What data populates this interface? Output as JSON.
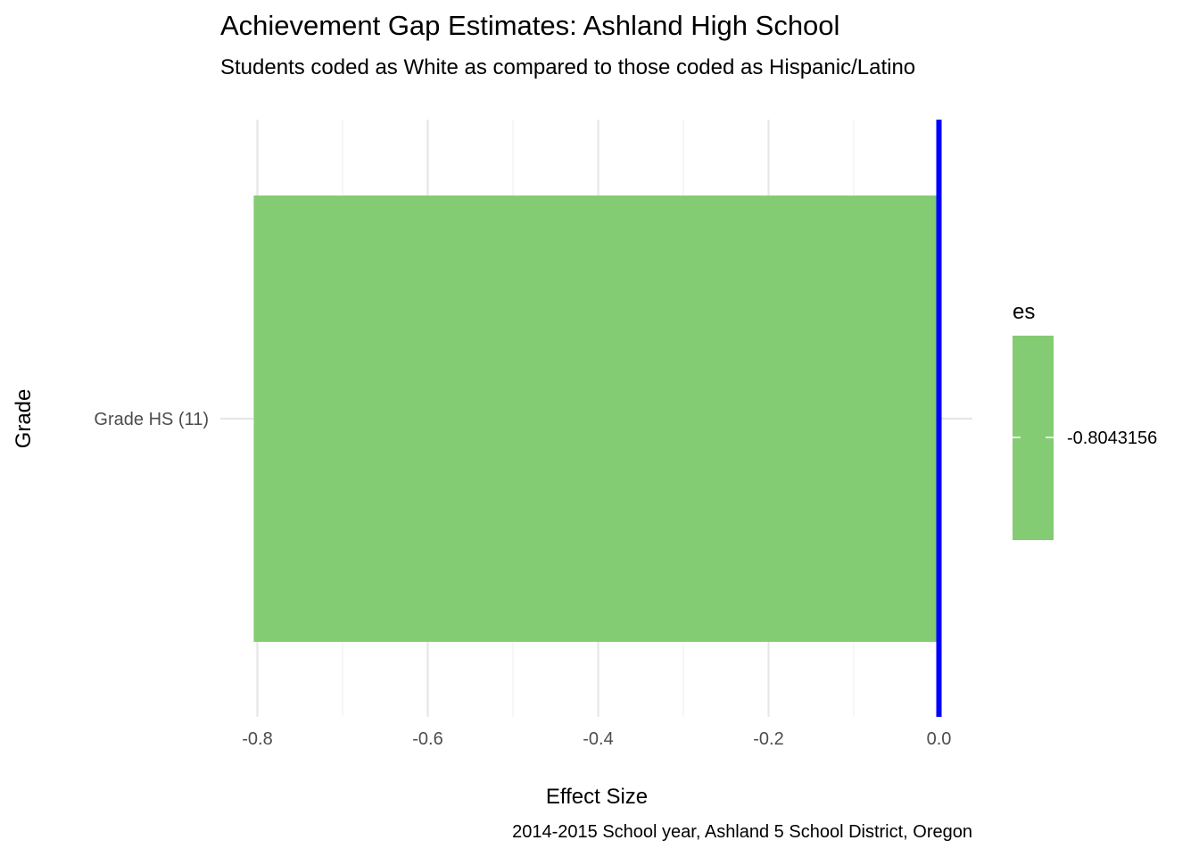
{
  "chart_data": {
    "type": "bar",
    "orientation": "horizontal",
    "title": "Achievement Gap Estimates: Ashland High School",
    "subtitle": "Students coded as White as compared to those coded as Hispanic/Latino",
    "caption": "2014-2015 School year, Ashland  5 School District, Oregon",
    "xlabel": "Effect Size",
    "ylabel": "Grade",
    "categories": [
      "Grade HS (11)"
    ],
    "values": [
      -0.8043156
    ],
    "xlim": [
      -0.8043156,
      0.04
    ],
    "x_ticks": [
      -0.8,
      -0.6,
      -0.4,
      -0.2,
      0.0
    ],
    "x_tick_labels": [
      "-0.8",
      "-0.6",
      "-0.4",
      "-0.2",
      "0.0"
    ],
    "reference_line": {
      "x": 0,
      "color": "#0000ff"
    },
    "bar_color": "#84cc73",
    "grid": true,
    "legend": {
      "title": "es",
      "placement": "right",
      "label": "-0.8043156",
      "color": "#84cc73"
    }
  }
}
